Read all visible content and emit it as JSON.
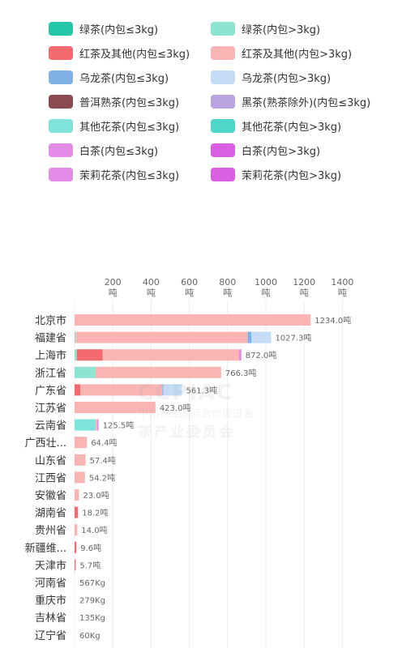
{
  "legend": [
    {
      "label": "绿茶(内包≤3kg)",
      "color": "#26c6a8"
    },
    {
      "label": "绿茶(内包>3kg)",
      "color": "#8fe3d3"
    },
    {
      "label": "红茶及其他(内包≤3kg)",
      "color": "#f46a6e"
    },
    {
      "label": "红茶及其他(内包>3kg)",
      "color": "#fbb4b4"
    },
    {
      "label": "乌龙茶(内包≤3kg)",
      "color": "#7fb0e6"
    },
    {
      "label": "乌龙茶(内包>3kg)",
      "color": "#c4dcf5"
    },
    {
      "label": "普洱熟茶(内包≤3kg)",
      "color": "#8b4a52"
    },
    {
      "label": "黑茶(熟茶除外)(内包≤3kg)",
      "color": "#b9a4e0"
    },
    {
      "label": "其他花茶(内包≤3kg)",
      "color": "#7fe3dc"
    },
    {
      "label": "其他花茶(内包>3kg)",
      "color": "#4ed6c8"
    },
    {
      "label": "白茶(内包≤3kg)",
      "color": "#e38be6"
    },
    {
      "label": "白茶(内包>3kg)",
      "color": "#d75fe0"
    },
    {
      "label": "茉莉花茶(内包≤3kg)",
      "color": "#e38be6"
    },
    {
      "label": "茉莉花茶(内包>3kg)",
      "color": "#d75fe0"
    }
  ],
  "watermark": {
    "title": "CCPIAC",
    "line1": "中国农业国际合作促进会",
    "line2": "茶产业委员会"
  },
  "chart_data": {
    "type": "bar",
    "orientation": "horizontal",
    "stacked": true,
    "xlim": [
      0,
      1400
    ],
    "xticks": [
      200,
      400,
      600,
      800,
      1000,
      1200,
      1400
    ],
    "tick_unit": "吨",
    "grid": true,
    "categories": [
      "北京市",
      "福建省",
      "上海市",
      "浙江省",
      "广东省",
      "江苏省",
      "云南省",
      "广西壮...",
      "山东省",
      "江西省",
      "安徽省",
      "湖南省",
      "贵州省",
      "新疆维...",
      "天津市",
      "河南省",
      "重庆市",
      "吉林省",
      "辽宁省"
    ],
    "value_labels": [
      "1234.0吨",
      "1027.3吨",
      "872.0吨",
      "766.3吨",
      "561.3吨",
      "423.0吨",
      "125.5吨",
      "64.4吨",
      "57.4吨",
      "54.2吨",
      "23.0吨",
      "18.2吨",
      "14.0吨",
      "9.6吨",
      "5.7吨",
      "567Kg",
      "279Kg",
      "135Kg",
      "60Kg"
    ],
    "totals": [
      1234.0,
      1027.3,
      872.0,
      766.3,
      561.3,
      423.0,
      125.5,
      64.4,
      57.4,
      54.2,
      23.0,
      18.2,
      14.0,
      9.6,
      5.7,
      0.567,
      0.279,
      0.135,
      0.06
    ],
    "segments": [
      [
        {
          "series": 3,
          "value": 1234.0
        }
      ],
      [
        {
          "series": 1,
          "value": 5
        },
        {
          "series": 3,
          "value": 900
        },
        {
          "series": 4,
          "value": 20
        },
        {
          "series": 5,
          "value": 102.3
        }
      ],
      [
        {
          "series": 1,
          "value": 12
        },
        {
          "series": 2,
          "value": 135
        },
        {
          "series": 3,
          "value": 713
        },
        {
          "series": 10,
          "value": 12
        }
      ],
      [
        {
          "series": 1,
          "value": 110
        },
        {
          "series": 3,
          "value": 656.3
        }
      ],
      [
        {
          "series": 2,
          "value": 30
        },
        {
          "series": 3,
          "value": 430
        },
        {
          "series": 4,
          "value": 5
        },
        {
          "series": 5,
          "value": 96.3
        }
      ],
      [
        {
          "series": 3,
          "value": 423.0
        }
      ],
      [
        {
          "series": 8,
          "value": 110
        },
        {
          "series": 3,
          "value": 8
        },
        {
          "series": 10,
          "value": 7.5
        }
      ],
      [
        {
          "series": 3,
          "value": 64.4
        }
      ],
      [
        {
          "series": 3,
          "value": 57.4
        }
      ],
      [
        {
          "series": 3,
          "value": 54.2
        }
      ],
      [
        {
          "series": 3,
          "value": 23.0
        }
      ],
      [
        {
          "series": 2,
          "value": 18.2
        }
      ],
      [
        {
          "series": 3,
          "value": 14.0
        }
      ],
      [
        {
          "series": 2,
          "value": 9.6
        }
      ],
      [
        {
          "series": 2,
          "value": 5.7
        }
      ],
      [],
      [],
      [],
      []
    ]
  }
}
